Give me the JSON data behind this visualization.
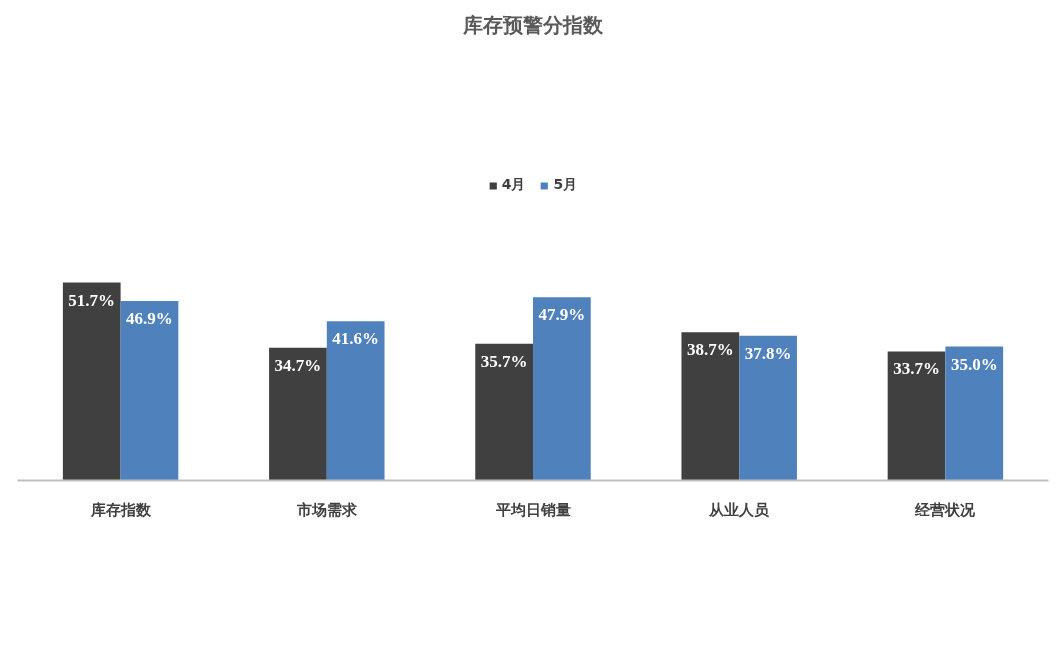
{
  "chart_data": {
    "type": "bar",
    "title": "库存预警分指数",
    "categories": [
      "库存指数",
      "市场需求",
      "平均日销量",
      "从业人员",
      "经营状况"
    ],
    "series": [
      {
        "name": "4月",
        "color": "#404040",
        "values": [
          51.7,
          34.7,
          35.7,
          38.7,
          33.7
        ],
        "value_labels": [
          "51.7%",
          "34.7%",
          "35.7%",
          "38.7%",
          "33.7%"
        ]
      },
      {
        "name": "5月",
        "color": "#4f81bd",
        "values": [
          46.9,
          41.6,
          47.9,
          37.8,
          35.0
        ],
        "value_labels": [
          "46.9%",
          "41.6%",
          "47.9%",
          "37.8%",
          "35.0%"
        ]
      }
    ],
    "legend": "top"
  }
}
